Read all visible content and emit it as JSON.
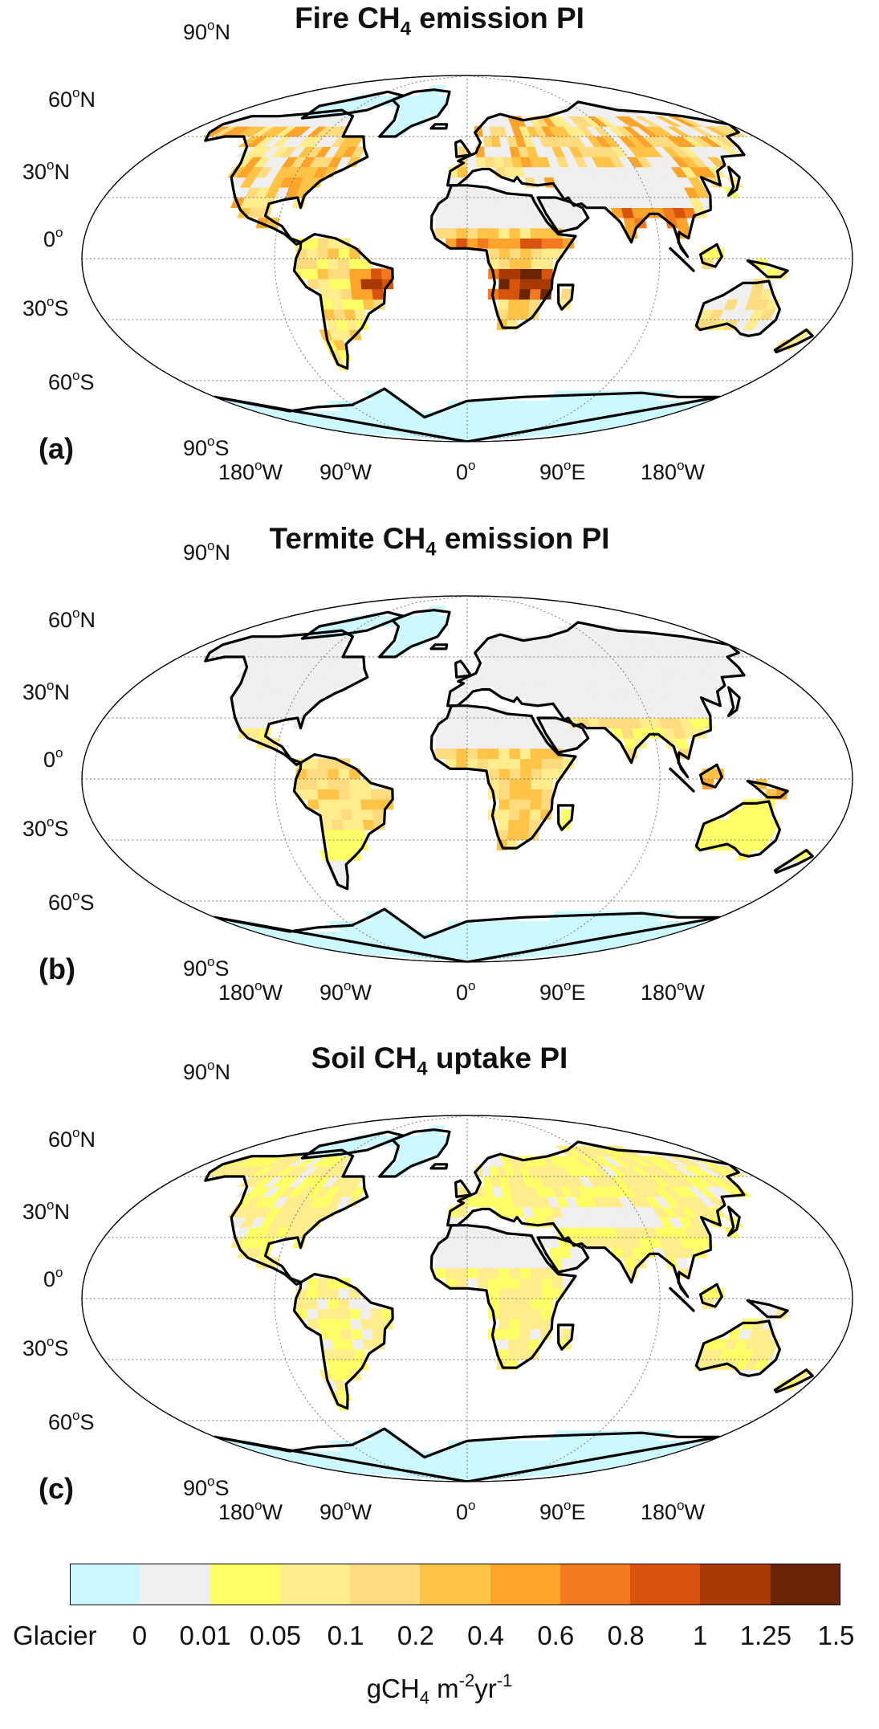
{
  "panels": [
    {
      "title_pre": "Fire CH",
      "title_sub": "4",
      "title_post": " emission PI",
      "label": "(a)",
      "variable": "fire"
    },
    {
      "title_pre": "Termite CH",
      "title_sub": "4",
      "title_post": " emission PI",
      "label": "(b)",
      "variable": "termite"
    },
    {
      "title_pre": "Soil CH",
      "title_sub": "4",
      "title_post": " uptake PI",
      "label": "(c)",
      "variable": "soil"
    }
  ],
  "lat_labels": [
    {
      "deg": "90",
      "sym": "o",
      "hemi": "N"
    },
    {
      "deg": "60",
      "sym": "o",
      "hemi": "N"
    },
    {
      "deg": "30",
      "sym": "o",
      "hemi": "N"
    },
    {
      "deg": "0",
      "sym": "o",
      "hemi": ""
    },
    {
      "deg": "30",
      "sym": "o",
      "hemi": "S"
    },
    {
      "deg": "60",
      "sym": "o",
      "hemi": "S"
    },
    {
      "deg": "90",
      "sym": "o",
      "hemi": "S"
    }
  ],
  "lon_labels": [
    {
      "deg": "180",
      "sym": "o",
      "hemi": "W"
    },
    {
      "deg": "90",
      "sym": "o",
      "hemi": "W"
    },
    {
      "deg": "0",
      "sym": "o",
      "hemi": ""
    },
    {
      "deg": "90",
      "sym": "o",
      "hemi": "E"
    },
    {
      "deg": "180",
      "sym": "o",
      "hemi": "W"
    }
  ],
  "colorbar": {
    "colors": [
      "#ccf9ff",
      "#efefef",
      "#ffff66",
      "#ffec8c",
      "#ffdb7f",
      "#ffc347",
      "#ffa42b",
      "#f57a1f",
      "#d8540c",
      "#a83b05",
      "#6b2506"
    ],
    "glacier_label": "Glacier",
    "ticks": [
      "0",
      "0.01",
      "0.05",
      "0.1",
      "0.2",
      "0.4",
      "0.6",
      "0.8",
      "1",
      "1.25",
      "1.5"
    ],
    "unit_pre": "gCH",
    "unit_sub": "4",
    "unit_mid": " m",
    "unit_sup1": "-2",
    "unit_post": "yr",
    "unit_sup2": "-1"
  },
  "colors": {
    "glacier": "#ccf9ff",
    "zero": "#efefef",
    "coast": "#000000",
    "grid": "#888888"
  }
}
